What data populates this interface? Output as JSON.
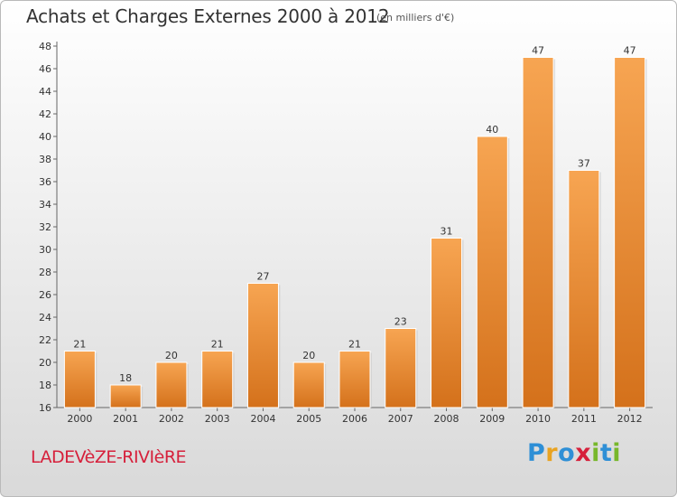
{
  "header": {
    "title": "Achats et Charges Externes 2000 à 2012",
    "unit": "(en milliers d'€)"
  },
  "footer": {
    "commune": "LADEVèZE-RIVIèRE",
    "logo": {
      "letters": [
        "P",
        "r",
        "o",
        "x",
        "i",
        "t",
        "i"
      ],
      "colors": [
        "#2e8fd6",
        "#e9a321",
        "#2e8fd6",
        "#d6203b",
        "#77b72b",
        "#2e8fd6",
        "#77b72b"
      ]
    }
  },
  "chart_data": {
    "type": "bar",
    "categories": [
      "2000",
      "2001",
      "2002",
      "2003",
      "2004",
      "2005",
      "2006",
      "2007",
      "2008",
      "2009",
      "2010",
      "2011",
      "2012"
    ],
    "values": [
      21,
      18,
      20,
      21,
      27,
      20,
      21,
      23,
      31,
      40,
      47,
      37,
      47
    ],
    "ylim": [
      16,
      48
    ],
    "yticks": [
      16,
      18,
      20,
      22,
      24,
      26,
      28,
      30,
      32,
      34,
      36,
      38,
      40,
      42,
      44,
      46,
      48
    ],
    "grid": false,
    "bar_color": "#f0913a",
    "title": "Achats et Charges Externes 2000 à 2012",
    "xlabel": "",
    "ylabel": ""
  }
}
